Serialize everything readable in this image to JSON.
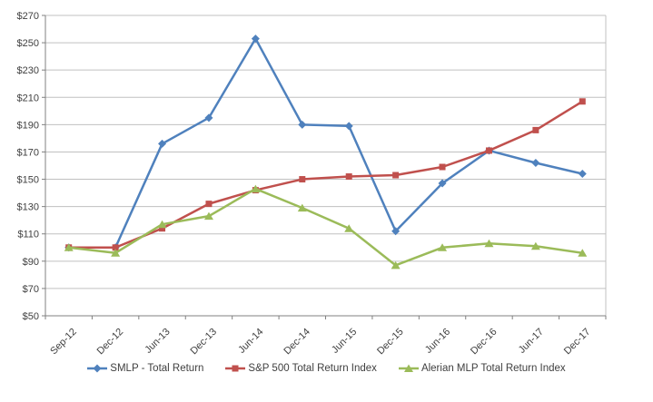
{
  "chart_data": {
    "type": "line",
    "title": "",
    "xlabel": "",
    "ylabel": "",
    "categories": [
      "Sep-12",
      "Dec-12",
      "Jun-13",
      "Dec-13",
      "Jun-14",
      "Dec-14",
      "Jun-15",
      "Dec-15",
      "Jun-16",
      "Dec-16",
      "Jun-17",
      "Dec-17"
    ],
    "series": [
      {
        "name": "SMLP - Total Return",
        "color": "#4F81BD",
        "marker": "diamond",
        "values": [
          100,
          100,
          176,
          195,
          253,
          190,
          189,
          112,
          147,
          171,
          162,
          154
        ]
      },
      {
        "name": "S&P 500 Total Return Index",
        "color": "#C0504D",
        "marker": "square",
        "values": [
          100,
          100,
          114,
          132,
          142,
          150,
          152,
          153,
          159,
          171,
          186,
          207
        ]
      },
      {
        "name": "Alerian MLP Total Return Index",
        "color": "#9BBB59",
        "marker": "triangle",
        "values": [
          100,
          96,
          117,
          123,
          143,
          129,
          114,
          87,
          100,
          103,
          101,
          96
        ]
      }
    ],
    "ylim": [
      50,
      270
    ],
    "y_tick_step": 20,
    "y_tick_prefix": "$",
    "y_tick_labels": [
      "$50",
      "$70",
      "$90",
      "$110",
      "$130",
      "$150",
      "$170",
      "$190",
      "$210",
      "$230",
      "$250",
      "$270"
    ],
    "grid": true,
    "legend_position": "bottom",
    "gridline_color": "#C0C0C0",
    "axis_color": "#808080",
    "text_color": "#404040",
    "background_color": "#FFFFFF"
  }
}
